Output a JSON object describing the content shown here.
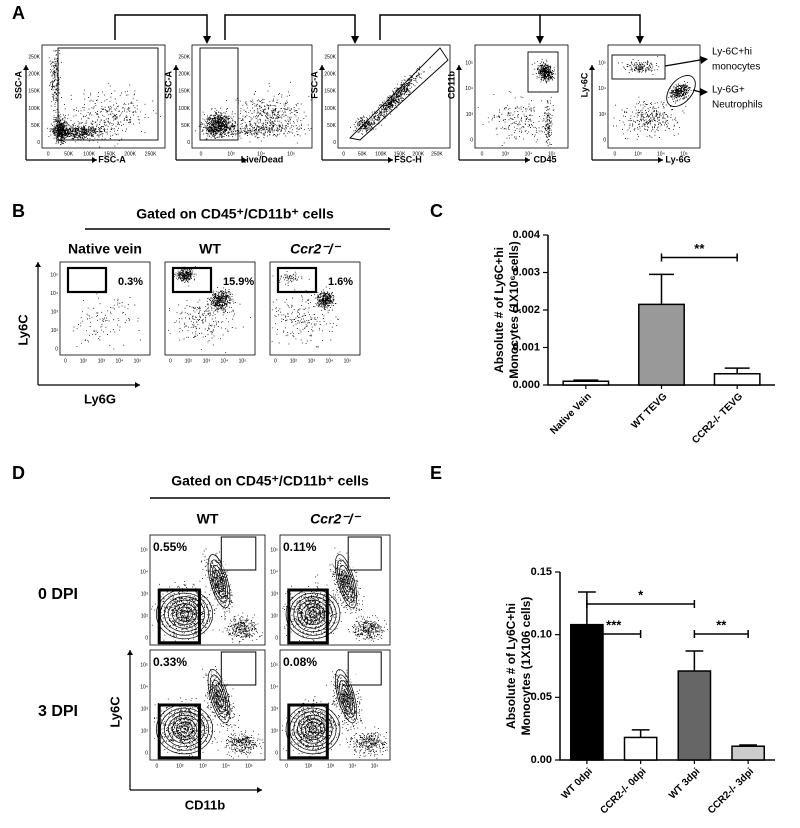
{
  "panel_a": {
    "letter": "A",
    "plots": [
      {
        "y_label": "SSC-A",
        "x_label": "FSC-A",
        "x_ticks": [
          "0",
          "50K",
          "100K",
          "150K",
          "200K",
          "250K"
        ],
        "y_ticks": [
          "0",
          "50K",
          "100K",
          "150K",
          "200K",
          "250K"
        ]
      },
      {
        "y_label": "SSC-A",
        "x_label": "Live/Dead",
        "x_ticks": [
          "0",
          "10³",
          "10⁴",
          "10⁵"
        ],
        "y_ticks": [
          "0",
          "50K",
          "100K",
          "150K",
          "200K",
          "250K"
        ]
      },
      {
        "y_label": "FSC-A",
        "x_label": "FSC-H",
        "x_ticks": [
          "0",
          "50K",
          "100K",
          "150K",
          "200K",
          "250K"
        ],
        "y_ticks": [
          "0",
          "50K",
          "100K",
          "150K",
          "200K",
          "250K"
        ]
      },
      {
        "y_label": "CD11b",
        "x_label": "CD45",
        "x_ticks": [
          "0",
          "10³",
          "10⁴",
          "10⁵"
        ],
        "y_ticks": [
          "0",
          "10³",
          "10⁴",
          "10⁵"
        ]
      },
      {
        "y_label": "Ly-6C",
        "x_label": "Ly-6G",
        "x_ticks": [
          "0",
          "10³",
          "10⁴",
          "10⁵"
        ],
        "y_ticks": [
          "0",
          "10³",
          "10⁴",
          "10⁵"
        ]
      }
    ],
    "outputs": [
      [
        "Ly-6C+hi",
        "monocytes"
      ],
      [
        "Ly-6G+",
        "Neutrophils"
      ]
    ]
  },
  "panel_b": {
    "letter": "B",
    "title": "Gated on CD45⁺/CD11b⁺ cells",
    "groups": [
      "Native vein",
      "WT",
      "Ccr2⁻/⁻"
    ],
    "percentages": [
      "0.3%",
      "15.9%",
      "1.6%"
    ],
    "y_label": "Ly6C",
    "x_label": "Ly6G",
    "ticks": [
      "0",
      "10²",
      "10³",
      "10⁴",
      "10⁵"
    ]
  },
  "panel_d": {
    "letter": "D",
    "title": "Gated on CD45⁺/CD11b⁺ cells",
    "groups": [
      "WT",
      "Ccr2⁻/⁻"
    ],
    "rows": [
      "0 DPI",
      "3 DPI"
    ],
    "percentages": [
      [
        "0.55%",
        "0.11%"
      ],
      [
        "0.33%",
        "0.08%"
      ]
    ],
    "y_label": "Ly6C",
    "x_label": "CD11b",
    "ticks": [
      "0",
      "10²",
      "10³",
      "10⁴",
      "10⁵"
    ]
  },
  "chart_data": [
    {
      "type": "bar",
      "letter": "C",
      "y_label": [
        "Absolute # of  Ly6C+hi",
        "Monocytes (1X10⁶ cells)"
      ],
      "categories": [
        "Native Vein",
        "WT TEVG",
        "CCR2-/- TEVG"
      ],
      "values": [
        0.0001,
        0.00215,
        0.0003
      ],
      "errors": [
        3e-05,
        0.0008,
        0.00015
      ],
      "colors": [
        "#ffffff",
        "#999999",
        "#ffffff"
      ],
      "ylim": [
        0,
        0.004
      ],
      "yticks": [
        {
          "value": 0,
          "label": "0.000"
        },
        {
          "value": 0.001,
          "label": "0.001"
        },
        {
          "value": 0.002,
          "label": "0.002"
        },
        {
          "value": 0.003,
          "label": "0.003"
        },
        {
          "value": 0.004,
          "label": "0.004"
        }
      ],
      "annotations": [
        "**"
      ]
    },
    {
      "type": "bar",
      "letter": "E",
      "y_label": [
        "Absolute # of Ly6C+hi",
        "Monocytes (1X106 cells)"
      ],
      "categories": [
        "WT 0dpi",
        "CCR2-/- 0dpi",
        "WT 3dpi",
        "CCR2-/- 3dpi"
      ],
      "values": [
        0.108,
        0.018,
        0.071,
        0.011
      ],
      "errors": [
        0.026,
        0.006,
        0.016,
        0.001
      ],
      "colors": [
        "#000000",
        "#ffffff",
        "#666666",
        "#cccccc"
      ],
      "ylim": [
        0,
        0.15
      ],
      "yticks": [
        {
          "value": 0,
          "label": "0.00"
        },
        {
          "value": 0.05,
          "label": "0.05"
        },
        {
          "value": 0.1,
          "label": "0.10"
        },
        {
          "value": 0.15,
          "label": "0.15"
        }
      ],
      "annotations": [
        "*",
        "***",
        "**"
      ]
    }
  ]
}
